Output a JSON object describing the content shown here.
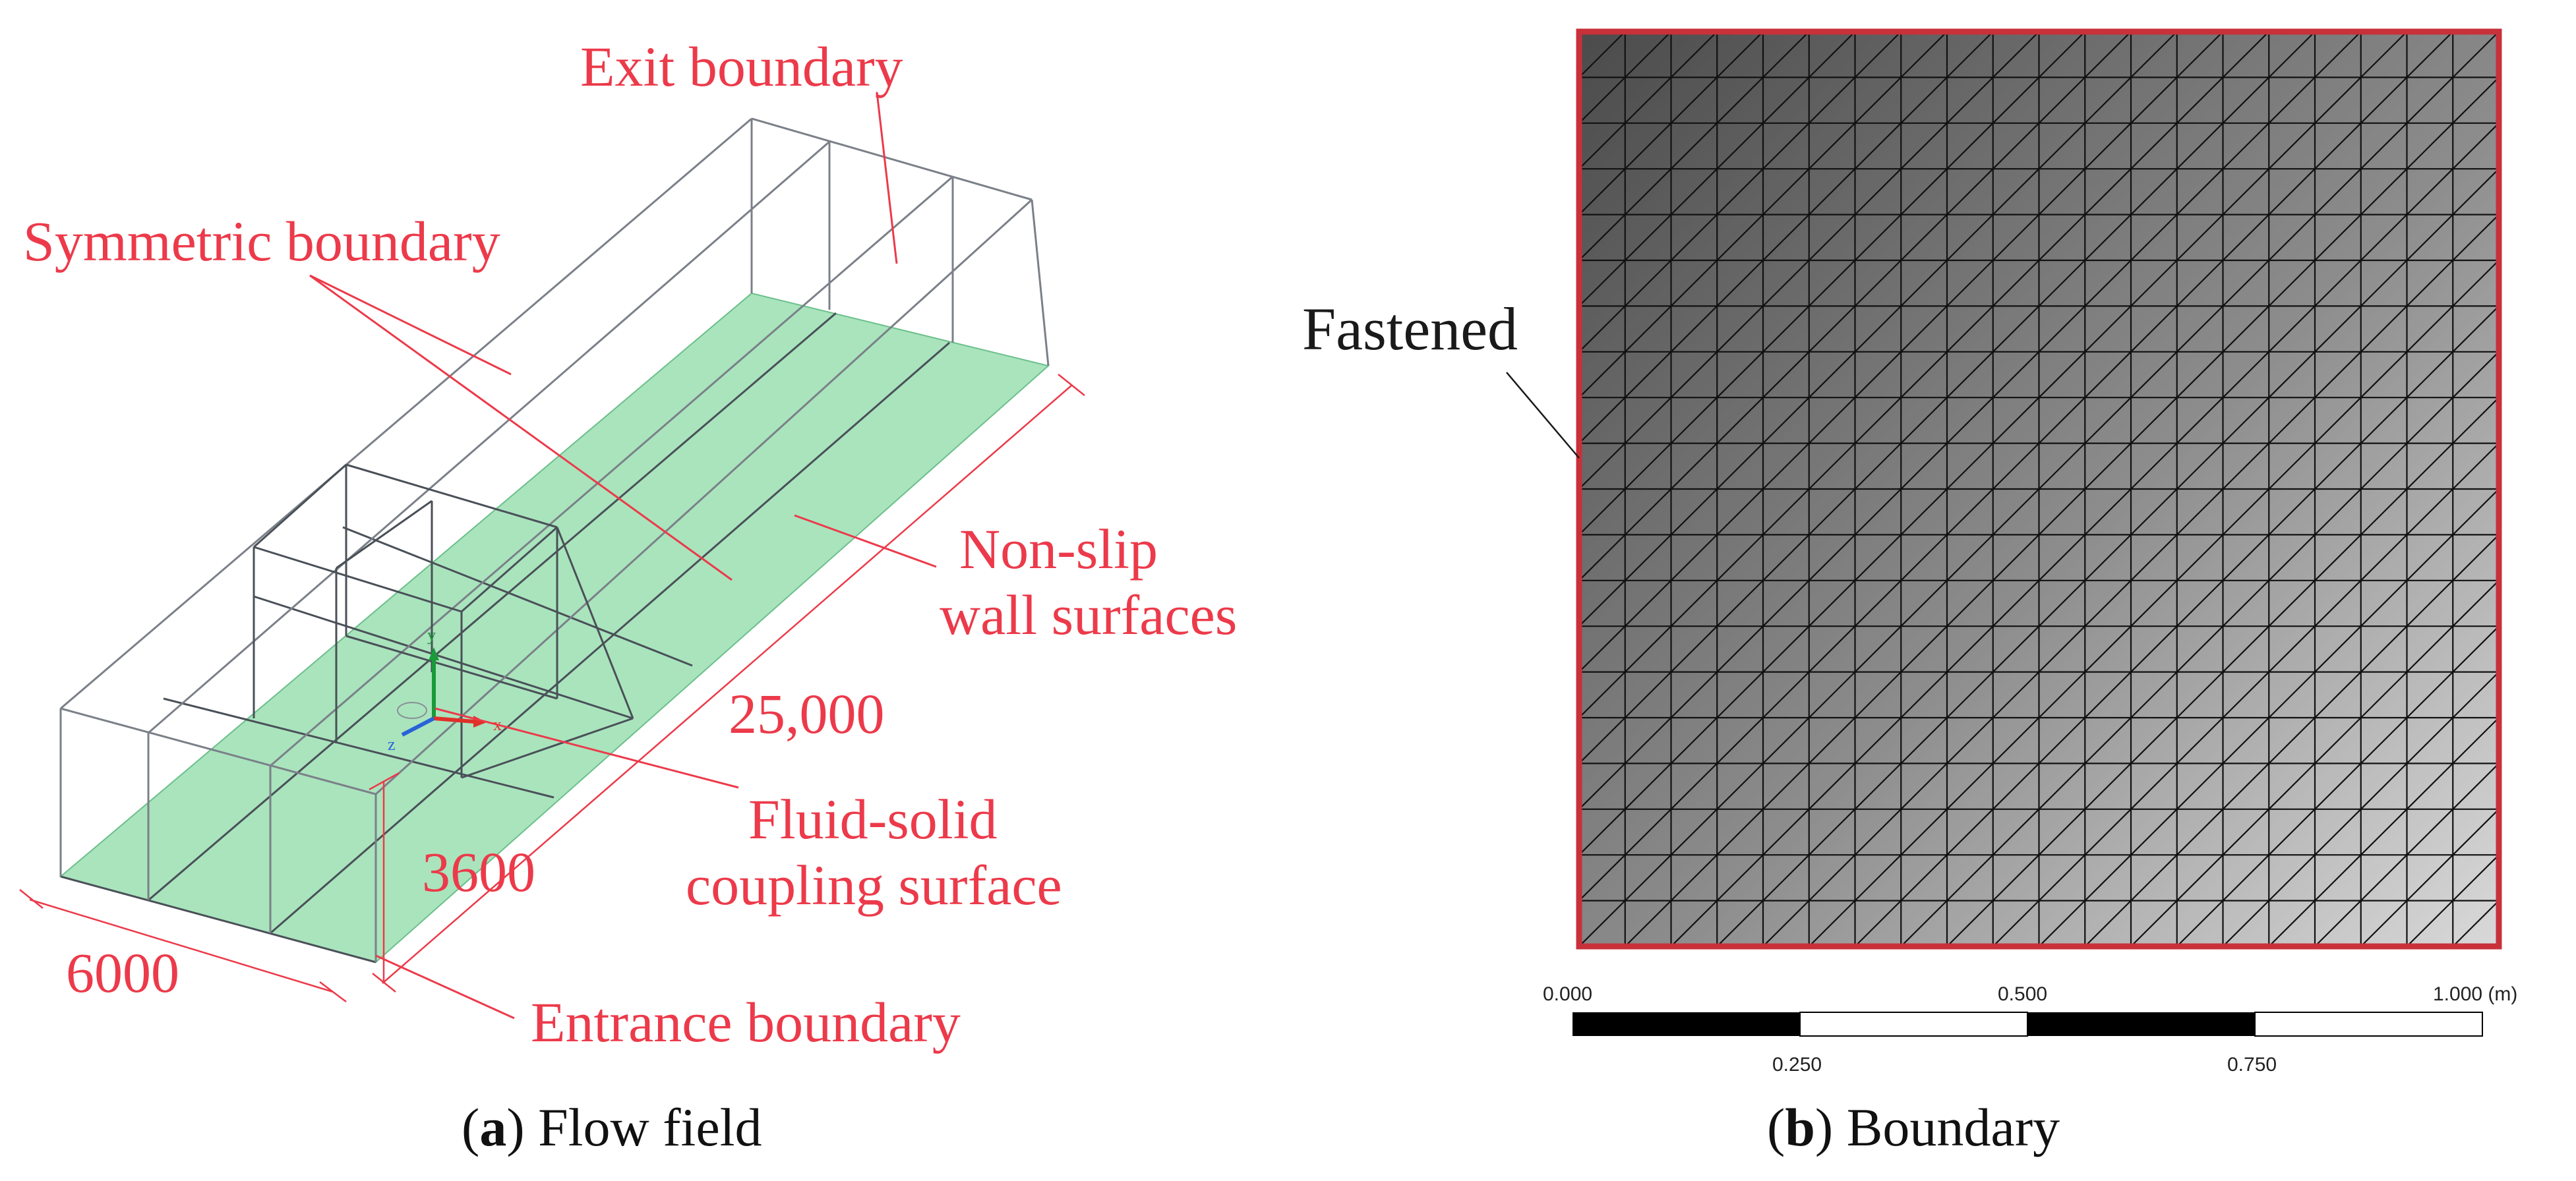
{
  "panel_a": {
    "labels": {
      "exit": "Exit boundary",
      "symmetric": "Symmetric boundary",
      "nonslip_line1": "Non-slip",
      "nonslip_line2": "wall surfaces",
      "length": "25,000",
      "fluid_line1": "Fluid-solid",
      "fluid_line2": "coupling surface",
      "height": "3600",
      "width": "6000",
      "entrance": "Entrance boundary"
    },
    "axes": {
      "x": "x",
      "y": "y",
      "z": "z"
    },
    "caption": {
      "letter": "a",
      "text": "Flow field"
    },
    "colors": {
      "label": "#ec3a4a",
      "floor": "#a9e4bd",
      "wire": "#7b8088"
    }
  },
  "panel_b": {
    "label": "Fastened",
    "scale_bar": {
      "top_ticks": [
        "0.000",
        "0.500",
        "1.000 (m)"
      ],
      "bottom_ticks": [
        "0.250",
        "0.750"
      ]
    },
    "caption": {
      "letter": "b",
      "text": "Boundary"
    },
    "colors": {
      "border": "#c8303a",
      "mesh_line": "#111111"
    }
  }
}
